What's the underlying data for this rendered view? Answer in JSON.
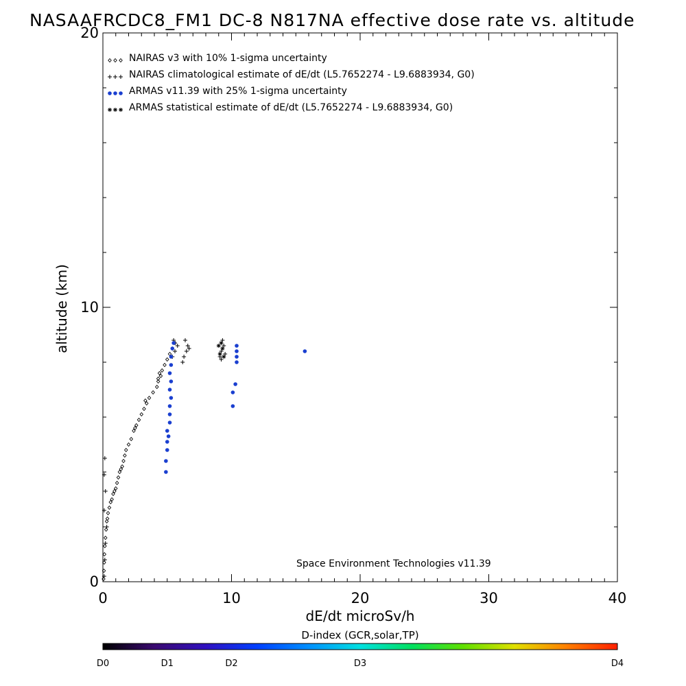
{
  "chart_data": {
    "type": "scatter",
    "title": "NASAAFRCDC8_FM1 DC-8   N817NA effective dose rate vs. altitude",
    "xlabel": "dE/dt microSv/h",
    "ylabel": "altitude (km)",
    "xlim": [
      0,
      40
    ],
    "ylim": [
      0,
      20
    ],
    "x_ticks": [
      "0",
      "10",
      "20",
      "30",
      "40"
    ],
    "y_ticks": [
      "0",
      "10",
      "20"
    ],
    "legend_placement": "top-left",
    "grid": false,
    "credit": "Space Environment Technologies v11.39",
    "series": [
      {
        "name": "NAIRAS v3 with 10% 1-sigma uncertainty",
        "marker": "diamond",
        "color": "#000000",
        "points": [
          [
            0.05,
            0.1
          ],
          [
            0.08,
            0.4
          ],
          [
            0.1,
            0.7
          ],
          [
            0.12,
            1.0
          ],
          [
            0.15,
            1.3
          ],
          [
            0.2,
            1.6
          ],
          [
            0.25,
            1.9
          ],
          [
            0.3,
            2.2
          ],
          [
            0.4,
            2.5
          ],
          [
            0.5,
            2.7
          ],
          [
            0.6,
            2.9
          ],
          [
            0.7,
            3.0
          ],
          [
            0.8,
            3.2
          ],
          [
            1.0,
            3.4
          ],
          [
            1.1,
            3.6
          ],
          [
            1.2,
            3.8
          ],
          [
            1.3,
            4.0
          ],
          [
            1.5,
            4.2
          ],
          [
            1.6,
            4.4
          ],
          [
            1.7,
            4.6
          ],
          [
            1.8,
            4.8
          ],
          [
            2.0,
            5.0
          ],
          [
            2.2,
            5.2
          ],
          [
            2.4,
            5.5
          ],
          [
            2.6,
            5.7
          ],
          [
            2.8,
            5.9
          ],
          [
            3.0,
            6.1
          ],
          [
            3.2,
            6.3
          ],
          [
            3.4,
            6.5
          ],
          [
            3.6,
            6.7
          ],
          [
            3.9,
            6.9
          ],
          [
            4.2,
            7.1
          ],
          [
            4.3,
            7.3
          ],
          [
            4.5,
            7.5
          ],
          [
            4.6,
            7.7
          ],
          [
            4.8,
            7.9
          ],
          [
            5.0,
            8.1
          ],
          [
            5.2,
            8.3
          ],
          [
            5.4,
            8.5
          ],
          [
            5.6,
            8.7
          ],
          [
            4.3,
            7.4
          ],
          [
            4.4,
            7.6
          ],
          [
            3.3,
            6.6
          ],
          [
            2.5,
            5.6
          ],
          [
            1.4,
            4.1
          ],
          [
            0.9,
            3.3
          ],
          [
            0.35,
            2.3
          ]
        ]
      },
      {
        "name": "NAIRAS climatological estimate of dE/dt (L5.7652274 - L9.6883934, G0)",
        "marker": "plus",
        "color": "#000000",
        "points": [
          [
            0.1,
            0.2
          ],
          [
            0.15,
            0.8
          ],
          [
            0.2,
            1.4
          ],
          [
            0.3,
            2.0
          ],
          [
            0.1,
            2.6
          ],
          [
            0.2,
            3.3
          ],
          [
            0.1,
            3.9
          ],
          [
            0.15,
            4.5
          ],
          [
            5.4,
            8.2
          ],
          [
            5.6,
            8.4
          ],
          [
            5.8,
            8.6
          ],
          [
            5.5,
            8.8
          ],
          [
            6.3,
            8.2
          ],
          [
            6.5,
            8.4
          ],
          [
            6.6,
            8.6
          ],
          [
            6.4,
            8.8
          ],
          [
            6.2,
            8.0
          ],
          [
            6.7,
            8.5
          ],
          [
            9.1,
            8.2
          ],
          [
            9.2,
            8.4
          ],
          [
            9.4,
            8.6
          ],
          [
            9.3,
            8.8
          ],
          [
            9.5,
            8.3
          ],
          [
            9.2,
            8.1
          ]
        ]
      },
      {
        "name": "ARMAS v11.39 with 25% 1-sigma uncertainty",
        "marker": "dot",
        "color": "#1a3fd0",
        "points": [
          [
            4.9,
            4.0
          ],
          [
            4.9,
            4.4
          ],
          [
            5.0,
            4.8
          ],
          [
            5.0,
            5.1
          ],
          [
            5.1,
            5.3
          ],
          [
            5.0,
            5.5
          ],
          [
            5.2,
            5.8
          ],
          [
            5.2,
            6.1
          ],
          [
            5.2,
            6.4
          ],
          [
            5.3,
            6.7
          ],
          [
            5.2,
            7.0
          ],
          [
            5.3,
            7.3
          ],
          [
            5.2,
            7.6
          ],
          [
            5.3,
            7.9
          ],
          [
            5.3,
            8.2
          ],
          [
            5.4,
            8.5
          ],
          [
            5.5,
            8.7
          ],
          [
            10.1,
            6.4
          ],
          [
            10.1,
            6.9
          ],
          [
            10.3,
            7.2
          ],
          [
            10.4,
            8.0
          ],
          [
            10.4,
            8.2
          ],
          [
            10.4,
            8.4
          ],
          [
            10.4,
            8.6
          ],
          [
            15.7,
            8.4
          ]
        ]
      },
      {
        "name": "ARMAS statistical estimate of dE/dt (L5.7652274 - L9.6883934, G0)",
        "marker": "asterisk",
        "color": "#000000",
        "points": [
          [
            9.1,
            8.3
          ],
          [
            9.3,
            8.5
          ],
          [
            9.2,
            8.7
          ],
          [
            9.4,
            8.2
          ],
          [
            9.0,
            8.6
          ]
        ]
      }
    ],
    "colorbar": {
      "title": "D-index (GCR,solar,TP)",
      "labels": [
        "D0",
        "D1",
        "D2",
        "D3",
        "D4"
      ],
      "label_values": [
        0,
        0.25,
        0.5,
        1.0,
        2.0
      ],
      "range": [
        0,
        2.0
      ],
      "colors": [
        "#000000",
        "#3a0a70",
        "#3010c0",
        "#0040ff",
        "#0090ff",
        "#00e0e0",
        "#00e060",
        "#60e000",
        "#e0e000",
        "#ff8000",
        "#ff2000"
      ]
    }
  }
}
